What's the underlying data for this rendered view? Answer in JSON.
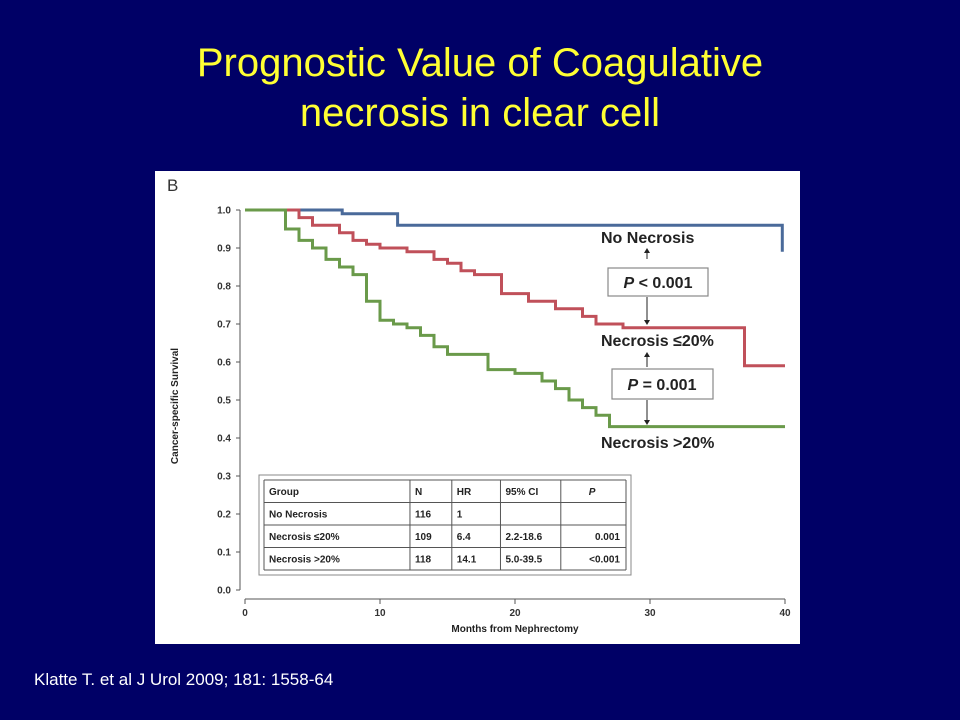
{
  "slide": {
    "title_line1": "Prognostic Value of Coagulative",
    "title_line2": "necrosis in clear cell",
    "citation": "Klatte T. et al J Urol 2009; 181: 1558-64"
  },
  "colors": {
    "background": "#000066",
    "title": "#ffff33",
    "no_necrosis": "#4a6a9a",
    "necrosis_le20": "#c0505a",
    "necrosis_gt20": "#6a9a4a"
  },
  "chart_data": {
    "type": "line",
    "panel_label": "B",
    "xlabel": "Months from Nephrectomy",
    "ylabel": "Cancer-specific Survival",
    "xlim": [
      0,
      40
    ],
    "ylim": [
      0.0,
      1.0
    ],
    "x_ticks": [
      "0",
      "10",
      "20",
      "30",
      "40"
    ],
    "y_ticks": [
      "0.0",
      "0.1",
      "0.2",
      "0.3",
      "0.4",
      "0.5",
      "0.6",
      "0.7",
      "0.8",
      "0.9",
      "1.0"
    ],
    "step": true,
    "series": [
      {
        "name": "No Necrosis",
        "color": "#4a6a9a",
        "points": [
          [
            0,
            1.0
          ],
          [
            7.2,
            1.0
          ],
          [
            7.2,
            0.99
          ],
          [
            11.3,
            0.99
          ],
          [
            11.3,
            0.96
          ],
          [
            39.8,
            0.96
          ],
          [
            39.8,
            0.89
          ]
        ]
      },
      {
        "name": "Necrosis ≤20%",
        "color": "#c0505a",
        "points": [
          [
            0,
            1.0
          ],
          [
            4,
            1.0
          ],
          [
            4,
            0.98
          ],
          [
            5,
            0.98
          ],
          [
            5,
            0.96
          ],
          [
            7,
            0.96
          ],
          [
            7,
            0.94
          ],
          [
            8,
            0.94
          ],
          [
            8,
            0.92
          ],
          [
            9,
            0.92
          ],
          [
            9,
            0.91
          ],
          [
            10,
            0.91
          ],
          [
            10,
            0.9
          ],
          [
            12,
            0.9
          ],
          [
            12,
            0.89
          ],
          [
            14,
            0.89
          ],
          [
            14,
            0.87
          ],
          [
            15,
            0.87
          ],
          [
            15,
            0.86
          ],
          [
            16,
            0.86
          ],
          [
            16,
            0.84
          ],
          [
            17,
            0.84
          ],
          [
            17,
            0.83
          ],
          [
            19,
            0.83
          ],
          [
            19,
            0.78
          ],
          [
            21,
            0.78
          ],
          [
            21,
            0.76
          ],
          [
            23,
            0.76
          ],
          [
            23,
            0.74
          ],
          [
            25,
            0.74
          ],
          [
            25,
            0.72
          ],
          [
            26,
            0.72
          ],
          [
            26,
            0.7
          ],
          [
            28,
            0.7
          ],
          [
            28,
            0.69
          ],
          [
            37,
            0.69
          ],
          [
            37,
            0.59
          ],
          [
            40,
            0.59
          ]
        ]
      },
      {
        "name": "Necrosis >20%",
        "color": "#6a9a4a",
        "points": [
          [
            0,
            1.0
          ],
          [
            3,
            1.0
          ],
          [
            3,
            0.95
          ],
          [
            4,
            0.95
          ],
          [
            4,
            0.92
          ],
          [
            5,
            0.92
          ],
          [
            5,
            0.9
          ],
          [
            6,
            0.9
          ],
          [
            6,
            0.87
          ],
          [
            7,
            0.87
          ],
          [
            7,
            0.85
          ],
          [
            8,
            0.85
          ],
          [
            8,
            0.83
          ],
          [
            9,
            0.83
          ],
          [
            9,
            0.76
          ],
          [
            10,
            0.76
          ],
          [
            10,
            0.71
          ],
          [
            11,
            0.71
          ],
          [
            11,
            0.7
          ],
          [
            12,
            0.7
          ],
          [
            12,
            0.69
          ],
          [
            13,
            0.69
          ],
          [
            13,
            0.67
          ],
          [
            14,
            0.67
          ],
          [
            14,
            0.64
          ],
          [
            15,
            0.64
          ],
          [
            15,
            0.62
          ],
          [
            18,
            0.62
          ],
          [
            18,
            0.58
          ],
          [
            20,
            0.58
          ],
          [
            20,
            0.57
          ],
          [
            22,
            0.57
          ],
          [
            22,
            0.55
          ],
          [
            23,
            0.55
          ],
          [
            23,
            0.53
          ],
          [
            24,
            0.53
          ],
          [
            24,
            0.5
          ],
          [
            25,
            0.5
          ],
          [
            25,
            0.48
          ],
          [
            26,
            0.48
          ],
          [
            26,
            0.46
          ],
          [
            27,
            0.46
          ],
          [
            27,
            0.43
          ],
          [
            40,
            0.43
          ]
        ]
      }
    ],
    "annotations": {
      "no_necrosis": "No Necrosis",
      "p1_prefix": "P",
      "p1_value": " < 0.001",
      "necrosis_le20": "Necrosis ≤20%",
      "p2_prefix": "P",
      "p2_value": " = 0.001",
      "necrosis_gt20": "Necrosis >20%"
    },
    "table": {
      "headers": [
        "Group",
        "N",
        "HR",
        "95% CI",
        "P"
      ],
      "rows": [
        [
          "No Necrosis",
          "116",
          "1",
          "",
          ""
        ],
        [
          "Necrosis ≤20%",
          "109",
          "6.4",
          "2.2-18.6",
          "0.001"
        ],
        [
          "Necrosis >20%",
          "118",
          "14.1",
          "5.0-39.5",
          "<0.001"
        ]
      ]
    }
  }
}
